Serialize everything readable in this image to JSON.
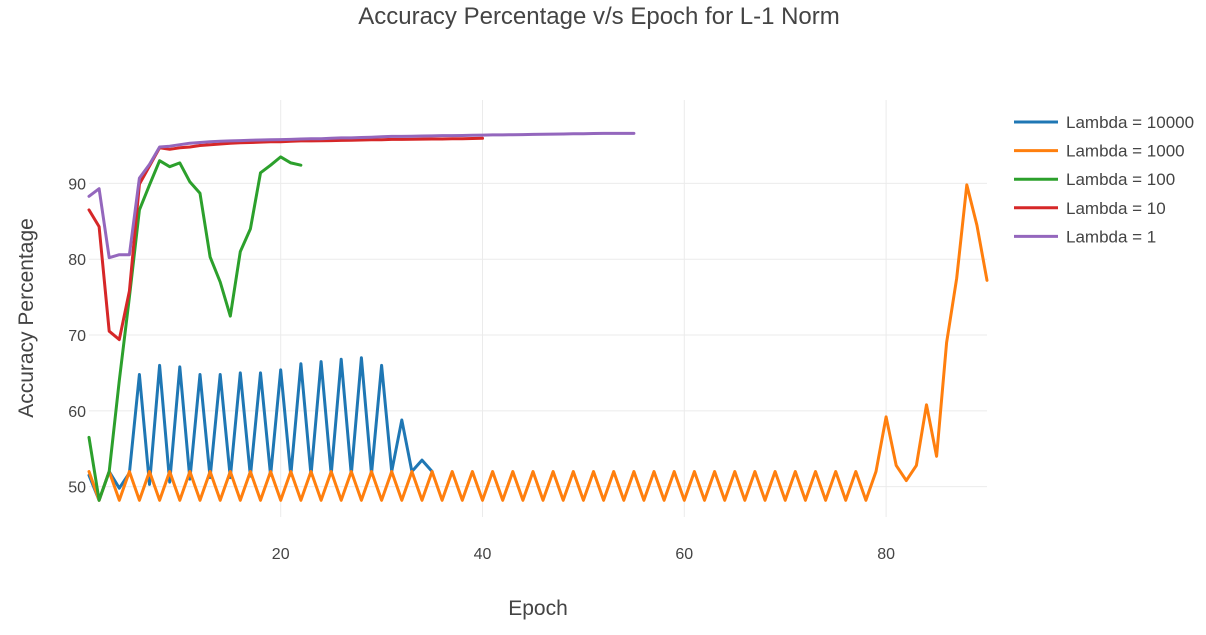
{
  "chart_data": {
    "type": "line",
    "title": "Accuracy Percentage v/s Epoch for L-1 Norm",
    "xlabel": "Epoch",
    "ylabel": "Accuracy Percentage",
    "xlim": [
      1,
      90
    ],
    "ylim": [
      46,
      101
    ],
    "xticks": [
      20,
      40,
      60,
      80
    ],
    "yticks": [
      50,
      60,
      70,
      80,
      90
    ],
    "grid": true,
    "legend_position": "top-right",
    "series": [
      {
        "name": "Lambda = 10000",
        "color": "#1f77b4",
        "x": [
          1,
          2,
          3,
          4,
          5,
          6,
          7,
          8,
          9,
          10,
          11,
          12,
          13,
          14,
          15,
          16,
          17,
          18,
          19,
          20,
          21,
          22,
          23,
          24,
          25,
          26,
          27,
          28,
          29,
          30,
          31,
          32,
          33,
          34,
          35
        ],
        "y": [
          51.5,
          48.2,
          52,
          49.8,
          51.8,
          64.8,
          50.3,
          66,
          50.6,
          65.8,
          51,
          64.8,
          51.2,
          64.8,
          51.2,
          65,
          51.4,
          65,
          51.5,
          65.4,
          51.5,
          66.2,
          51.5,
          66.5,
          51.6,
          66.8,
          51.6,
          67,
          51.7,
          66,
          52,
          58.8,
          52,
          53.5,
          52
        ]
      },
      {
        "name": "Lambda = 1000",
        "color": "#ff7f0e",
        "x": [
          1,
          2,
          3,
          4,
          5,
          6,
          7,
          8,
          9,
          10,
          11,
          12,
          13,
          14,
          15,
          16,
          17,
          18,
          19,
          20,
          21,
          22,
          23,
          24,
          25,
          26,
          27,
          28,
          29,
          30,
          31,
          32,
          33,
          34,
          35,
          36,
          37,
          38,
          39,
          40,
          41,
          42,
          43,
          44,
          45,
          46,
          47,
          48,
          49,
          50,
          51,
          52,
          53,
          54,
          55,
          56,
          57,
          58,
          59,
          60,
          61,
          62,
          63,
          64,
          65,
          66,
          67,
          68,
          69,
          70,
          71,
          72,
          73,
          74,
          75,
          76,
          77,
          78,
          79,
          80,
          81,
          82,
          83,
          84,
          85,
          86,
          87,
          88,
          89,
          90
        ],
        "y": [
          52,
          48.2,
          52,
          48.2,
          52,
          48.2,
          52,
          48.2,
          52,
          48.2,
          52,
          48.2,
          52,
          48.2,
          52,
          48.2,
          52,
          48.2,
          52,
          48.2,
          52,
          48.2,
          52,
          48.2,
          52,
          48.2,
          52,
          48.2,
          52,
          48.2,
          52,
          48.2,
          52,
          48.2,
          52,
          48.2,
          52,
          48.2,
          52,
          48.2,
          52,
          48.2,
          52,
          48.2,
          52,
          48.2,
          52,
          48.2,
          52,
          48.2,
          52,
          48.2,
          52,
          48.2,
          52,
          48.2,
          52,
          48.2,
          52,
          48.2,
          52,
          48.2,
          52,
          48.2,
          52,
          48.2,
          52,
          48.2,
          52,
          48.2,
          52,
          48.2,
          52,
          48.2,
          52,
          48.2,
          52,
          48.2,
          52,
          59.2,
          52.8,
          50.8,
          52.8,
          60.8,
          54,
          69,
          77.5,
          89.8,
          84.5,
          77.2
        ]
      },
      {
        "name": "Lambda = 100",
        "color": "#2ca02c",
        "x": [
          1,
          2,
          3,
          4,
          5,
          6,
          7,
          8,
          9,
          10,
          11,
          12,
          13,
          14,
          15,
          16,
          17,
          18,
          19,
          20,
          21,
          22
        ],
        "y": [
          56.5,
          48.2,
          52,
          64,
          75,
          86.5,
          89.8,
          93,
          92.2,
          92.7,
          90.2,
          88.7,
          80.3,
          77,
          72.5,
          81,
          84,
          91.4,
          92.4,
          93.5,
          92.7,
          92.4
        ]
      },
      {
        "name": "Lambda = 10",
        "color": "#d62728",
        "x": [
          1,
          2,
          3,
          4,
          5,
          6,
          7,
          8,
          9,
          10,
          11,
          12,
          13,
          14,
          15,
          16,
          17,
          18,
          19,
          20,
          21,
          22,
          23,
          24,
          25,
          26,
          27,
          28,
          29,
          30,
          31,
          32,
          33,
          34,
          35,
          36,
          37,
          38,
          39,
          40
        ],
        "y": [
          86.5,
          84.3,
          70.5,
          69.4,
          75.8,
          89.9,
          92.3,
          94.7,
          94.5,
          94.7,
          94.8,
          95,
          95.1,
          95.2,
          95.3,
          95.35,
          95.4,
          95.45,
          95.5,
          95.5,
          95.55,
          95.6,
          95.6,
          95.62,
          95.65,
          95.67,
          95.7,
          95.72,
          95.75,
          95.77,
          95.8,
          95.8,
          95.82,
          95.84,
          95.85,
          95.86,
          95.88,
          95.9,
          95.92,
          95.95
        ]
      },
      {
        "name": "Lambda = 1",
        "color": "#9467bd",
        "x": [
          1,
          2,
          3,
          4,
          5,
          6,
          7,
          8,
          9,
          10,
          11,
          12,
          13,
          14,
          15,
          16,
          17,
          18,
          19,
          20,
          21,
          22,
          23,
          24,
          25,
          26,
          27,
          28,
          29,
          30,
          31,
          32,
          33,
          34,
          35,
          36,
          37,
          38,
          39,
          40,
          41,
          42,
          43,
          44,
          45,
          46,
          47,
          48,
          49,
          50,
          51,
          52,
          53,
          54,
          55
        ],
        "y": [
          88.3,
          89.3,
          80.2,
          80.6,
          80.6,
          90.7,
          92.5,
          94.8,
          94.9,
          95.1,
          95.3,
          95.4,
          95.5,
          95.55,
          95.6,
          95.65,
          95.7,
          95.72,
          95.75,
          95.78,
          95.8,
          95.85,
          95.88,
          95.9,
          95.95,
          96,
          96,
          96.05,
          96.1,
          96.15,
          96.2,
          96.2,
          96.22,
          96.25,
          96.27,
          96.3,
          96.3,
          96.32,
          96.35,
          96.37,
          96.4,
          96.4,
          96.42,
          96.44,
          96.46,
          96.48,
          96.5,
          96.52,
          96.54,
          96.56,
          96.58,
          96.6,
          96.6,
          96.6,
          96.6
        ]
      }
    ]
  }
}
